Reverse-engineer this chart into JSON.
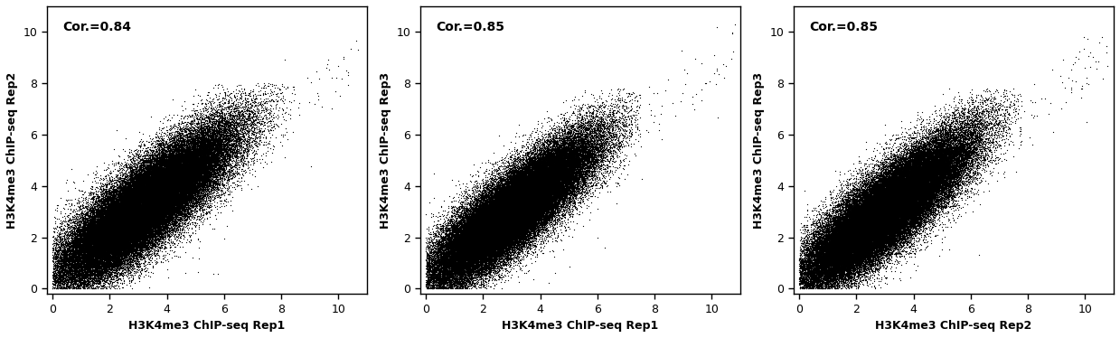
{
  "panels": [
    {
      "xlabel": "H3K4me3 ChIP-seq Rep1",
      "ylabel": "H3K4me3 ChIP-seq Rep2",
      "correlation": "Cor.=0.84",
      "xlim": [
        -0.2,
        11
      ],
      "ylim": [
        -0.2,
        11
      ],
      "xticks": [
        0,
        2,
        4,
        6,
        8,
        10
      ],
      "yticks": [
        0,
        2,
        4,
        6,
        8,
        10
      ],
      "seed": 42,
      "n_main": 80000,
      "x_center": 3.2,
      "y_center": 3.2,
      "x_std": 1.55,
      "y_std": 1.55,
      "corr": 0.84,
      "x_clip_max": 8.5,
      "y_clip_max": 8.0,
      "n_scatter": 500,
      "scatter_spread": 1.2,
      "n_high": 60
    },
    {
      "xlabel": "H3K4me3 ChIP-seq Rep1",
      "ylabel": "H3K4me3 ChIP-seq Rep3",
      "correlation": "Cor.=0.85",
      "xlim": [
        -0.2,
        11
      ],
      "ylim": [
        -0.2,
        11
      ],
      "xticks": [
        0,
        2,
        4,
        6,
        8,
        10
      ],
      "yticks": [
        0,
        2,
        4,
        6,
        8,
        10
      ],
      "seed": 123,
      "n_main": 80000,
      "x_center": 3.0,
      "y_center": 3.0,
      "x_std": 1.45,
      "y_std": 1.45,
      "corr": 0.85,
      "x_clip_max": 7.5,
      "y_clip_max": 7.8,
      "n_scatter": 500,
      "scatter_spread": 1.1,
      "n_high": 50
    },
    {
      "xlabel": "H3K4me3 ChIP-seq Rep2",
      "ylabel": "H3K4me3 ChIP-seq Rep3",
      "correlation": "Cor.=0.85",
      "xlim": [
        -0.2,
        11
      ],
      "ylim": [
        -0.2,
        11
      ],
      "xticks": [
        0,
        2,
        4,
        6,
        8,
        10
      ],
      "yticks": [
        0,
        2,
        4,
        6,
        8,
        10
      ],
      "seed": 999,
      "n_main": 80000,
      "x_center": 3.0,
      "y_center": 3.0,
      "x_std": 1.5,
      "y_std": 1.5,
      "corr": 0.85,
      "x_clip_max": 7.8,
      "y_clip_max": 7.8,
      "n_scatter": 500,
      "scatter_spread": 1.1,
      "n_high": 60
    }
  ],
  "figure_width": 12.39,
  "figure_height": 3.74,
  "dpi": 100,
  "dot_color": "#000000",
  "dot_size": 0.8,
  "font_size_label": 9,
  "font_size_tick": 9,
  "font_size_corr": 10,
  "font_weight_label": "bold",
  "font_weight_corr": "bold"
}
